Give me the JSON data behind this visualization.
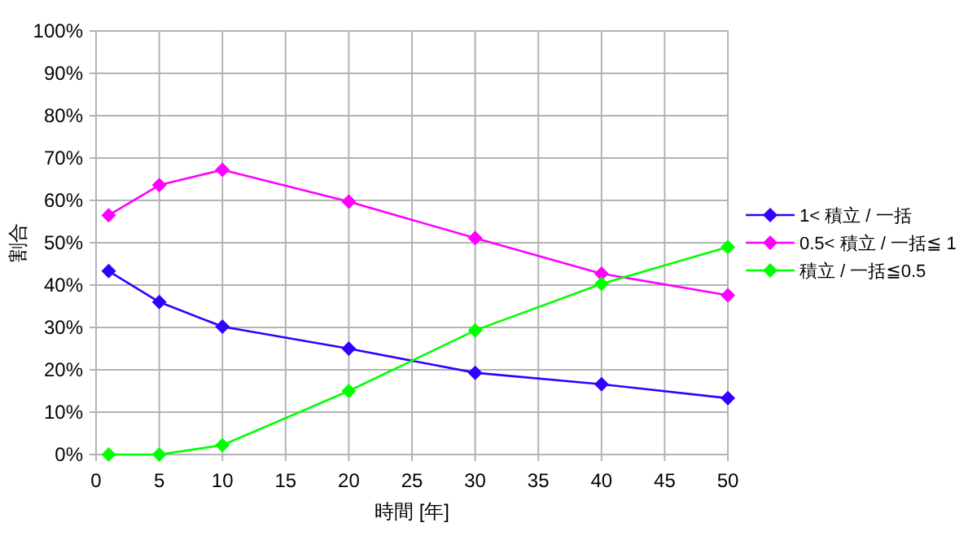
{
  "chart_data": {
    "type": "line",
    "xlabel": "時間 [年]",
    "ylabel": "割合",
    "x": [
      1,
      5,
      10,
      20,
      30,
      40,
      50
    ],
    "series": [
      {
        "name": "1< 積立 / 一括",
        "color": "#3300ff",
        "values": [
          43.3,
          36,
          30.2,
          25,
          19.3,
          16.6,
          13.3
        ]
      },
      {
        "name": "0.5< 積立 / 一括≦ 1",
        "color": "#ff00ff",
        "values": [
          56.5,
          63.6,
          67.2,
          59.7,
          51.1,
          42.7,
          37.6
        ]
      },
      {
        "name": "積立 / 一括≦0.5",
        "color": "#00ff00",
        "values": [
          0,
          0,
          2.2,
          15,
          29.3,
          40.3,
          49.0
        ]
      }
    ],
    "xlim": [
      0,
      50
    ],
    "xticks": [
      0,
      5,
      10,
      15,
      20,
      25,
      30,
      35,
      40,
      45,
      50
    ],
    "ylim": [
      0,
      100
    ],
    "yticks": [
      {
        "value": 0,
        "label": "0%"
      },
      {
        "value": 10,
        "label": "10%"
      },
      {
        "value": 20,
        "label": "20%"
      },
      {
        "value": 30,
        "label": "30%"
      },
      {
        "value": 40,
        "label": "40%"
      },
      {
        "value": 50,
        "label": "50%"
      },
      {
        "value": 60,
        "label": "60%"
      },
      {
        "value": 70,
        "label": "70%"
      },
      {
        "value": 80,
        "label": "80%"
      },
      {
        "value": 90,
        "label": "90%"
      },
      {
        "value": 100,
        "label": "100%"
      }
    ],
    "grid": true,
    "legend": "right",
    "marker": "diamond",
    "line_style": "solid"
  }
}
